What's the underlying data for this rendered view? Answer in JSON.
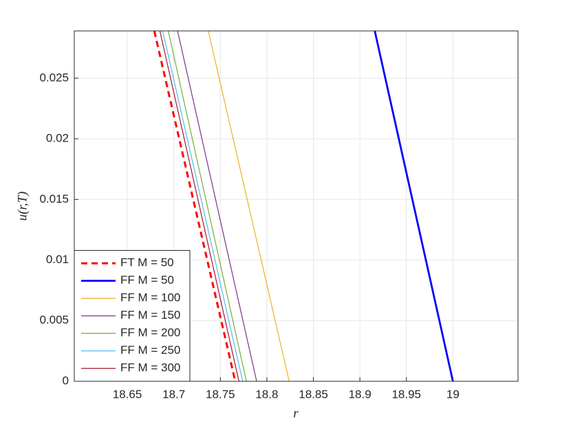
{
  "chart_data": {
    "type": "line",
    "x_label": "r",
    "y_label": "u(r,T)",
    "xlim": [
      18.593,
      19.07
    ],
    "xticks": [
      18.65,
      18.7,
      18.75,
      18.8,
      18.85,
      18.9,
      18.95,
      19
    ],
    "ylim": [
      0,
      0.0289
    ],
    "yticks": [
      0,
      0.005,
      0.01,
      0.015,
      0.02,
      0.025
    ],
    "grid": true,
    "legend": "lower-left",
    "series": [
      {
        "name": "FT M = 50",
        "color": "#ff0000",
        "line_style": "dashed",
        "line_width": 3,
        "x": [
          18.679,
          18.766
        ],
        "values": [
          0.0289,
          0
        ]
      },
      {
        "name": "FF M = 50",
        "color": "#0000ff",
        "line_style": "solid",
        "line_width": 2.8,
        "x": [
          18.916,
          19.0
        ],
        "values": [
          0.0289,
          0
        ]
      },
      {
        "name": "FF M = 100",
        "color": "#edb120",
        "line_style": "solid",
        "line_width": 1.2,
        "x": [
          18.737,
          18.824
        ],
        "values": [
          0.0289,
          0
        ]
      },
      {
        "name": "FF M = 150",
        "color": "#7e2f8e",
        "line_style": "solid",
        "line_width": 1.2,
        "x": [
          18.704,
          18.789
        ],
        "values": [
          0.0289,
          0
        ]
      },
      {
        "name": "FF M = 200",
        "color": "#77ac30",
        "line_style": "solid",
        "line_width": 1.2,
        "x": [
          18.694,
          18.778
        ],
        "values": [
          0.0289,
          0
        ]
      },
      {
        "name": "FF M = 250",
        "color": "#4dbeee",
        "line_style": "solid",
        "line_width": 1.2,
        "x": [
          18.688,
          18.774
        ],
        "values": [
          0.0289,
          0
        ]
      },
      {
        "name": "FF M = 300",
        "color": "#a2142f",
        "line_style": "solid",
        "line_width": 1.2,
        "x": [
          18.685,
          18.77
        ],
        "values": [
          0.0289,
          0
        ]
      }
    ]
  }
}
